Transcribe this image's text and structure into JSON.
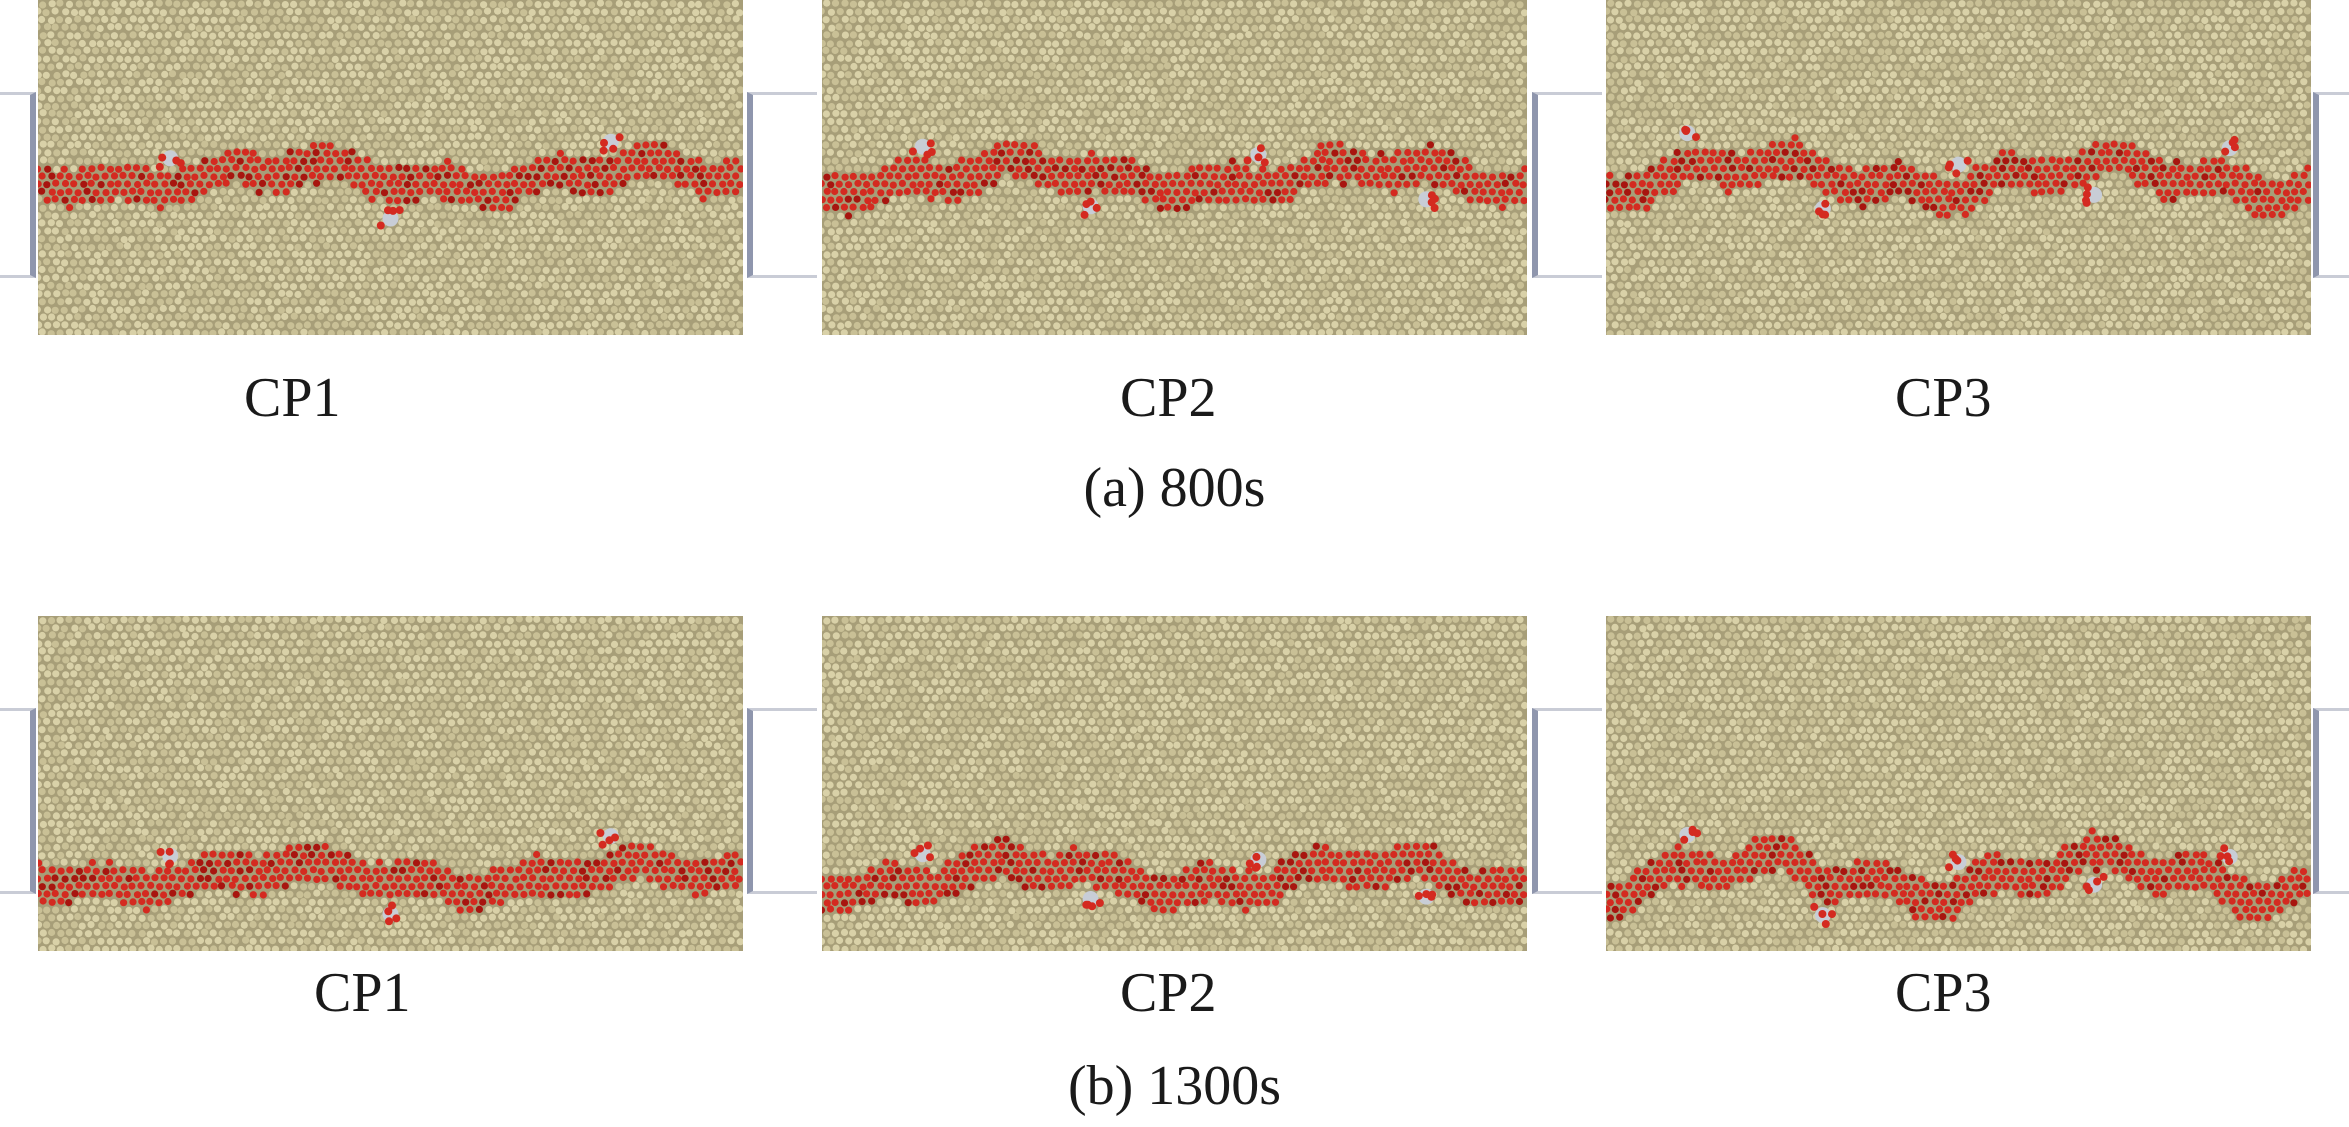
{
  "rows": [
    {
      "caption": "(a) 800s",
      "panels": [
        {
          "label": "CP1",
          "band_level": 0.53,
          "wander": 0.06
        },
        {
          "label": "CP2",
          "band_level": 0.53,
          "wander": 0.07
        },
        {
          "label": "CP3",
          "band_level": 0.53,
          "wander": 0.08
        }
      ]
    },
    {
      "caption": "(b) 1300s",
      "panels": [
        {
          "label": "CP1",
          "band_level": 0.78,
          "wander": 0.06
        },
        {
          "label": "CP2",
          "band_level": 0.78,
          "wander": 0.08
        },
        {
          "label": "CP3",
          "band_level": 0.78,
          "wander": 0.1
        }
      ]
    }
  ],
  "colors": {
    "background": "#ffffff",
    "soil_dark": "#a79e78",
    "soil_light": "#d9d1a8",
    "fluid": "#d42a20",
    "fluid_dark": "#a8150f",
    "probe": "#c8cdd6",
    "frame": "#8f96ad"
  }
}
